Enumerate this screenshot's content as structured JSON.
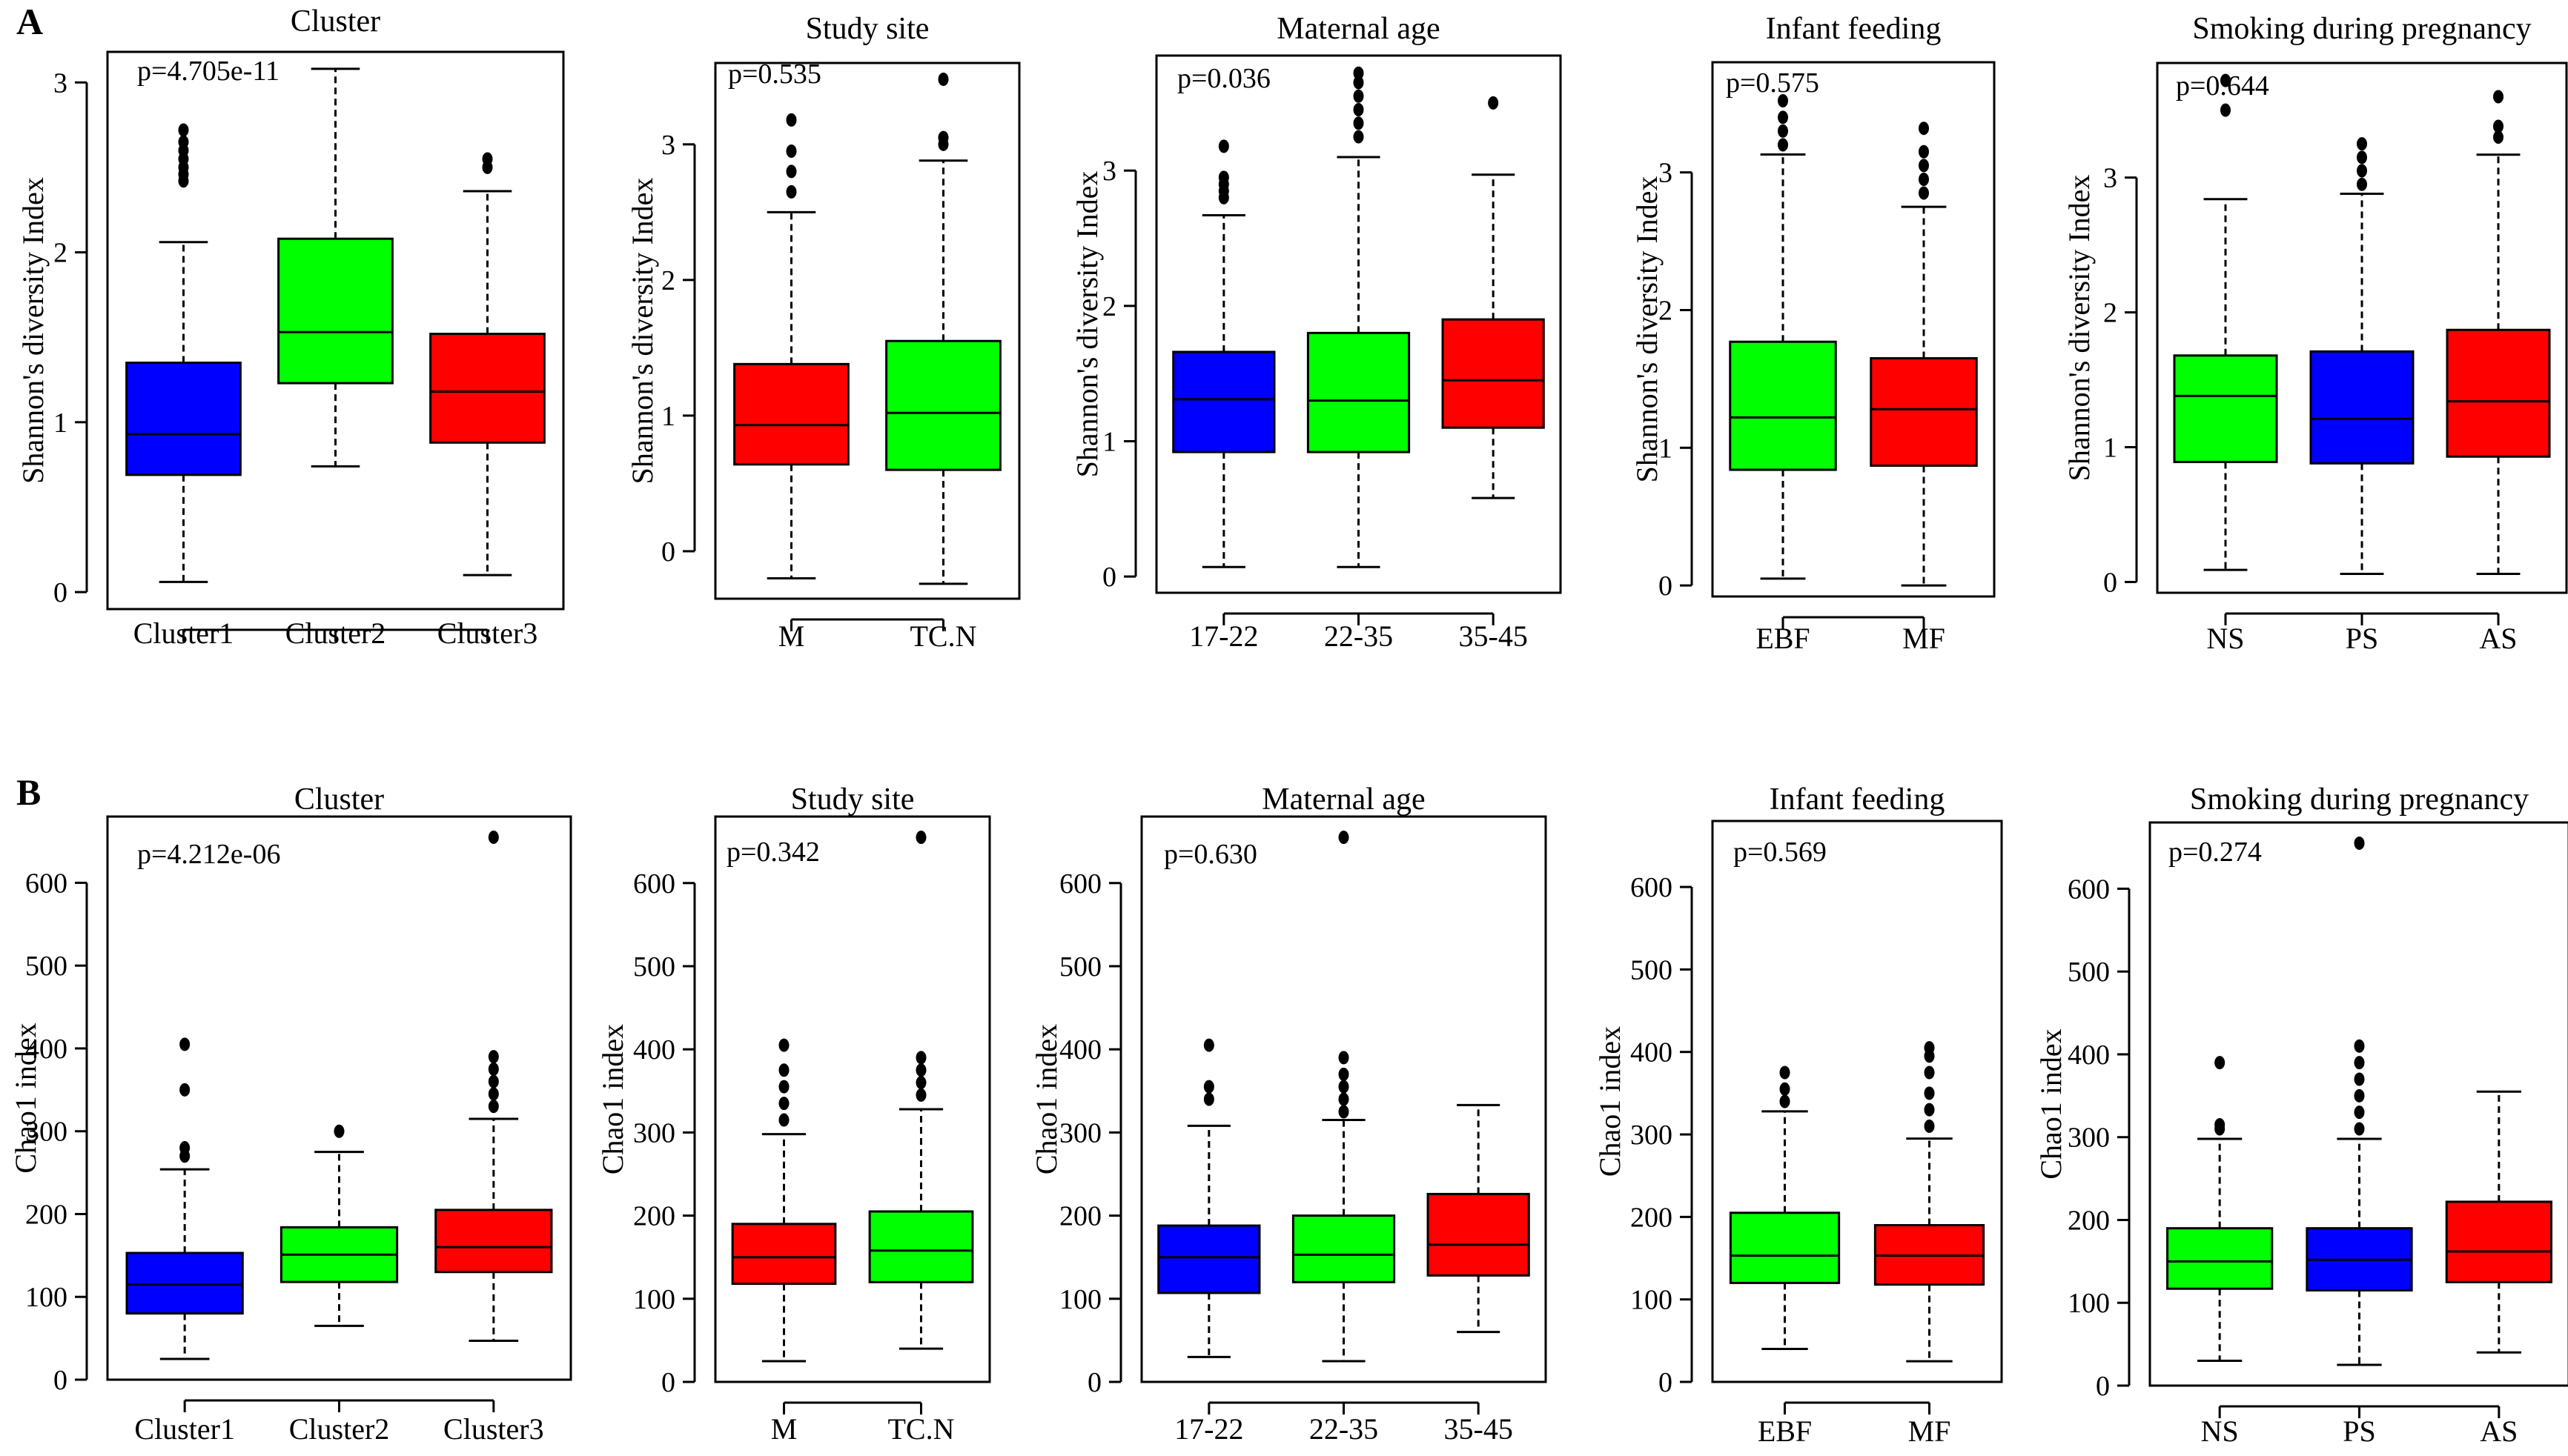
{
  "panels": [
    {
      "letter": "A",
      "ylabel": "Shannon's diversity Index"
    },
    {
      "letter": "B",
      "ylabel": "Chao1 index"
    }
  ],
  "colors": {
    "blue": "#0000ff",
    "green": "#00ff00",
    "red": "#ff0000"
  },
  "chart_data": [
    {
      "type": "boxplot",
      "panel": "A",
      "title": "Cluster",
      "ylabel": "Shannon's diversity Index",
      "pvalue": "p=4.705e-11",
      "ylim": [
        -0.1,
        3.18
      ],
      "yticks": [
        0,
        1,
        2,
        3
      ],
      "categories": [
        "Cluster1",
        "Cluster2",
        "Cluster3"
      ],
      "colors": [
        "#0000ff",
        "#00ff00",
        "#ff0000"
      ],
      "boxes": [
        {
          "low": 0.06,
          "q1": 0.69,
          "median": 0.93,
          "q3": 1.35,
          "high": 2.06,
          "outliers": [
            2.42,
            2.46,
            2.5,
            2.55,
            2.6,
            2.65,
            2.72
          ]
        },
        {
          "low": 0.74,
          "q1": 1.23,
          "median": 1.53,
          "q3": 2.08,
          "high": 3.08,
          "outliers": []
        },
        {
          "low": 0.1,
          "q1": 0.88,
          "median": 1.18,
          "q3": 1.52,
          "high": 2.36,
          "outliers": [
            2.5,
            2.55
          ]
        }
      ]
    },
    {
      "type": "boxplot",
      "panel": "A",
      "title": "Study site",
      "ylabel": "Shannon's diversity Index",
      "pvalue": "p=0.535",
      "ylim": [
        -0.35,
        3.6
      ],
      "yticks": [
        0,
        1,
        2,
        3
      ],
      "categories": [
        "M",
        "TC.N"
      ],
      "colors": [
        "#ff0000",
        "#00ff00"
      ],
      "boxes": [
        {
          "low": -0.2,
          "q1": 0.64,
          "median": 0.93,
          "q3": 1.38,
          "high": 2.5,
          "outliers": [
            2.65,
            2.8,
            2.95,
            3.18
          ]
        },
        {
          "low": -0.24,
          "q1": 0.6,
          "median": 1.02,
          "q3": 1.55,
          "high": 2.88,
          "outliers": [
            3.0,
            3.05,
            3.48
          ]
        }
      ]
    },
    {
      "type": "boxplot",
      "panel": "A",
      "title": "Maternal age",
      "ylabel": "Shannon's diversity Index",
      "pvalue": "p=0.036",
      "ylim": [
        -0.12,
        3.85
      ],
      "yticks": [
        0,
        1,
        2,
        3
      ],
      "categories": [
        "17-22",
        "22-35",
        "35-45"
      ],
      "colors": [
        "#0000ff",
        "#00ff00",
        "#ff0000"
      ],
      "boxes": [
        {
          "low": 0.07,
          "q1": 0.92,
          "median": 1.31,
          "q3": 1.66,
          "high": 2.67,
          "outliers": [
            2.8,
            2.85,
            2.9,
            2.95,
            3.18
          ]
        },
        {
          "low": 0.07,
          "q1": 0.92,
          "median": 1.3,
          "q3": 1.8,
          "high": 3.1,
          "outliers": [
            3.25,
            3.35,
            3.45,
            3.55,
            3.65,
            3.72
          ]
        },
        {
          "low": 0.58,
          "q1": 1.1,
          "median": 1.45,
          "q3": 1.9,
          "high": 2.97,
          "outliers": [
            3.5
          ]
        }
      ]
    },
    {
      "type": "boxplot",
      "panel": "A",
      "title": "Infant feeding",
      "ylabel": "Shannon's diversity Index",
      "pvalue": "p=0.575",
      "ylim": [
        -0.08,
        3.8
      ],
      "yticks": [
        0,
        1,
        2,
        3
      ],
      "categories": [
        "EBF",
        "MF"
      ],
      "colors": [
        "#00ff00",
        "#ff0000"
      ],
      "boxes": [
        {
          "low": 0.05,
          "q1": 0.84,
          "median": 1.22,
          "q3": 1.77,
          "high": 3.13,
          "outliers": [
            3.2,
            3.3,
            3.4,
            3.52
          ]
        },
        {
          "low": 0.0,
          "q1": 0.87,
          "median": 1.28,
          "q3": 1.65,
          "high": 2.75,
          "outliers": [
            2.85,
            2.95,
            3.05,
            3.15,
            3.32
          ]
        }
      ]
    },
    {
      "type": "boxplot",
      "panel": "A",
      "title": "Smoking during pregnancy",
      "ylabel": "Shannon's diversity Index",
      "pvalue": "p=0.644",
      "ylim": [
        -0.08,
        3.85
      ],
      "yticks": [
        0,
        1,
        2,
        3
      ],
      "categories": [
        "NS",
        "PS",
        "AS"
      ],
      "colors": [
        "#00ff00",
        "#0000ff",
        "#ff0000"
      ],
      "boxes": [
        {
          "low": 0.09,
          "q1": 0.89,
          "median": 1.38,
          "q3": 1.68,
          "high": 2.84,
          "outliers": [
            3.5,
            3.72
          ]
        },
        {
          "low": 0.06,
          "q1": 0.88,
          "median": 1.21,
          "q3": 1.71,
          "high": 2.88,
          "outliers": [
            2.95,
            3.05,
            3.15,
            3.25
          ]
        },
        {
          "low": 0.06,
          "q1": 0.93,
          "median": 1.34,
          "q3": 1.87,
          "high": 3.17,
          "outliers": [
            3.3,
            3.38,
            3.6
          ]
        }
      ]
    },
    {
      "type": "boxplot",
      "panel": "B",
      "title": "Cluster",
      "ylabel": "Chao1 index",
      "pvalue": "p=4.212e-06",
      "ylim": [
        0,
        680
      ],
      "yticks": [
        0,
        100,
        200,
        300,
        400,
        500,
        600
      ],
      "categories": [
        "Cluster1",
        "Cluster2",
        "Cluster3"
      ],
      "colors": [
        "#0000ff",
        "#00ff00",
        "#ff0000"
      ],
      "boxes": [
        {
          "low": 25,
          "q1": 80,
          "median": 115,
          "q3": 153,
          "high": 254,
          "outliers": [
            270,
            280,
            350,
            405
          ]
        },
        {
          "low": 65,
          "q1": 118,
          "median": 151,
          "q3": 184,
          "high": 275,
          "outliers": [
            300
          ]
        },
        {
          "low": 47,
          "q1": 130,
          "median": 160,
          "q3": 205,
          "high": 315,
          "outliers": [
            330,
            345,
            360,
            375,
            390,
            655
          ]
        }
      ]
    },
    {
      "type": "boxplot",
      "panel": "B",
      "title": "Study site",
      "ylabel": "Chao1 index",
      "pvalue": "p=0.342",
      "ylim": [
        0,
        680
      ],
      "yticks": [
        0,
        100,
        200,
        300,
        400,
        500,
        600
      ],
      "categories": [
        "M",
        "TC.N"
      ],
      "colors": [
        "#ff0000",
        "#00ff00"
      ],
      "boxes": [
        {
          "low": 25,
          "q1": 118,
          "median": 150,
          "q3": 190,
          "high": 298,
          "outliers": [
            315,
            335,
            355,
            375,
            405
          ]
        },
        {
          "low": 40,
          "q1": 120,
          "median": 158,
          "q3": 205,
          "high": 328,
          "outliers": [
            345,
            360,
            375,
            390,
            655
          ]
        }
      ]
    },
    {
      "type": "boxplot",
      "panel": "B",
      "title": "Maternal age",
      "ylabel": "Chao1 index",
      "pvalue": "p=0.630",
      "ylim": [
        0,
        680
      ],
      "yticks": [
        0,
        100,
        200,
        300,
        400,
        500,
        600
      ],
      "categories": [
        "17-22",
        "22-35",
        "35-45"
      ],
      "colors": [
        "#0000ff",
        "#00ff00",
        "#ff0000"
      ],
      "boxes": [
        {
          "low": 30,
          "q1": 107,
          "median": 150,
          "q3": 188,
          "high": 308,
          "outliers": [
            340,
            355,
            405
          ]
        },
        {
          "low": 25,
          "q1": 120,
          "median": 153,
          "q3": 200,
          "high": 315,
          "outliers": [
            325,
            340,
            355,
            370,
            390,
            655
          ]
        },
        {
          "low": 60,
          "q1": 128,
          "median": 165,
          "q3": 226,
          "high": 333,
          "outliers": []
        }
      ]
    },
    {
      "type": "boxplot",
      "panel": "B",
      "title": "Infant feeding",
      "ylabel": "Chao1 index",
      "pvalue": "p=0.569",
      "ylim": [
        0,
        680
      ],
      "yticks": [
        0,
        100,
        200,
        300,
        400,
        500,
        600
      ],
      "categories": [
        "EBF",
        "MF"
      ],
      "colors": [
        "#00ff00",
        "#ff0000"
      ],
      "boxes": [
        {
          "low": 40,
          "q1": 120,
          "median": 153,
          "q3": 205,
          "high": 328,
          "outliers": [
            340,
            355,
            375
          ]
        },
        {
          "low": 25,
          "q1": 118,
          "median": 153,
          "q3": 190,
          "high": 295,
          "outliers": [
            310,
            330,
            350,
            375,
            395,
            405
          ]
        }
      ]
    },
    {
      "type": "boxplot",
      "panel": "B",
      "title": "Smoking during pregnancy",
      "ylabel": "Chao1 index",
      "pvalue": "p=0.274",
      "ylim": [
        0,
        680
      ],
      "yticks": [
        0,
        100,
        200,
        300,
        400,
        500,
        600
      ],
      "categories": [
        "NS",
        "PS",
        "AS"
      ],
      "colors": [
        "#00ff00",
        "#0000ff",
        "#ff0000"
      ],
      "boxes": [
        {
          "low": 30,
          "q1": 117,
          "median": 150,
          "q3": 190,
          "high": 298,
          "outliers": [
            310,
            315,
            390
          ]
        },
        {
          "low": 25,
          "q1": 115,
          "median": 152,
          "q3": 190,
          "high": 298,
          "outliers": [
            310,
            330,
            350,
            370,
            390,
            410,
            655
          ]
        },
        {
          "low": 40,
          "q1": 125,
          "median": 162,
          "q3": 222,
          "high": 355,
          "outliers": []
        }
      ]
    }
  ]
}
